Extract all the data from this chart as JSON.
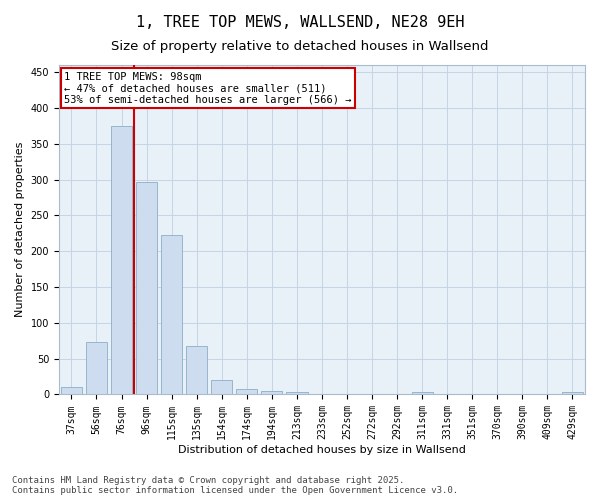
{
  "title": "1, TREE TOP MEWS, WALLSEND, NE28 9EH",
  "subtitle": "Size of property relative to detached houses in Wallsend",
  "xlabel": "Distribution of detached houses by size in Wallsend",
  "ylabel": "Number of detached properties",
  "categories": [
    "37sqm",
    "56sqm",
    "76sqm",
    "96sqm",
    "115sqm",
    "135sqm",
    "154sqm",
    "174sqm",
    "194sqm",
    "213sqm",
    "233sqm",
    "252sqm",
    "272sqm",
    "292sqm",
    "311sqm",
    "331sqm",
    "351sqm",
    "370sqm",
    "390sqm",
    "409sqm",
    "429sqm"
  ],
  "bar_values": [
    10,
    73,
    375,
    297,
    222,
    68,
    20,
    7,
    5,
    3,
    0,
    0,
    0,
    0,
    3,
    0,
    0,
    0,
    0,
    0,
    3
  ],
  "bar_color": "#cddcee",
  "bar_edge_color": "#8aafc8",
  "grid_color": "#c5d5e5",
  "bg_color": "#e8f0f8",
  "vline_color": "#cc0000",
  "vline_pos": 2.5,
  "annotation_text": "1 TREE TOP MEWS: 98sqm\n← 47% of detached houses are smaller (511)\n53% of semi-detached houses are larger (566) →",
  "annotation_box_color": "#cc0000",
  "ylim": [
    0,
    460
  ],
  "yticks": [
    0,
    50,
    100,
    150,
    200,
    250,
    300,
    350,
    400,
    450
  ],
  "footer": "Contains HM Land Registry data © Crown copyright and database right 2025.\nContains public sector information licensed under the Open Government Licence v3.0.",
  "title_fontsize": 11,
  "subtitle_fontsize": 9.5,
  "label_fontsize": 8,
  "tick_fontsize": 7,
  "annotation_fontsize": 7.5,
  "footer_fontsize": 6.5
}
